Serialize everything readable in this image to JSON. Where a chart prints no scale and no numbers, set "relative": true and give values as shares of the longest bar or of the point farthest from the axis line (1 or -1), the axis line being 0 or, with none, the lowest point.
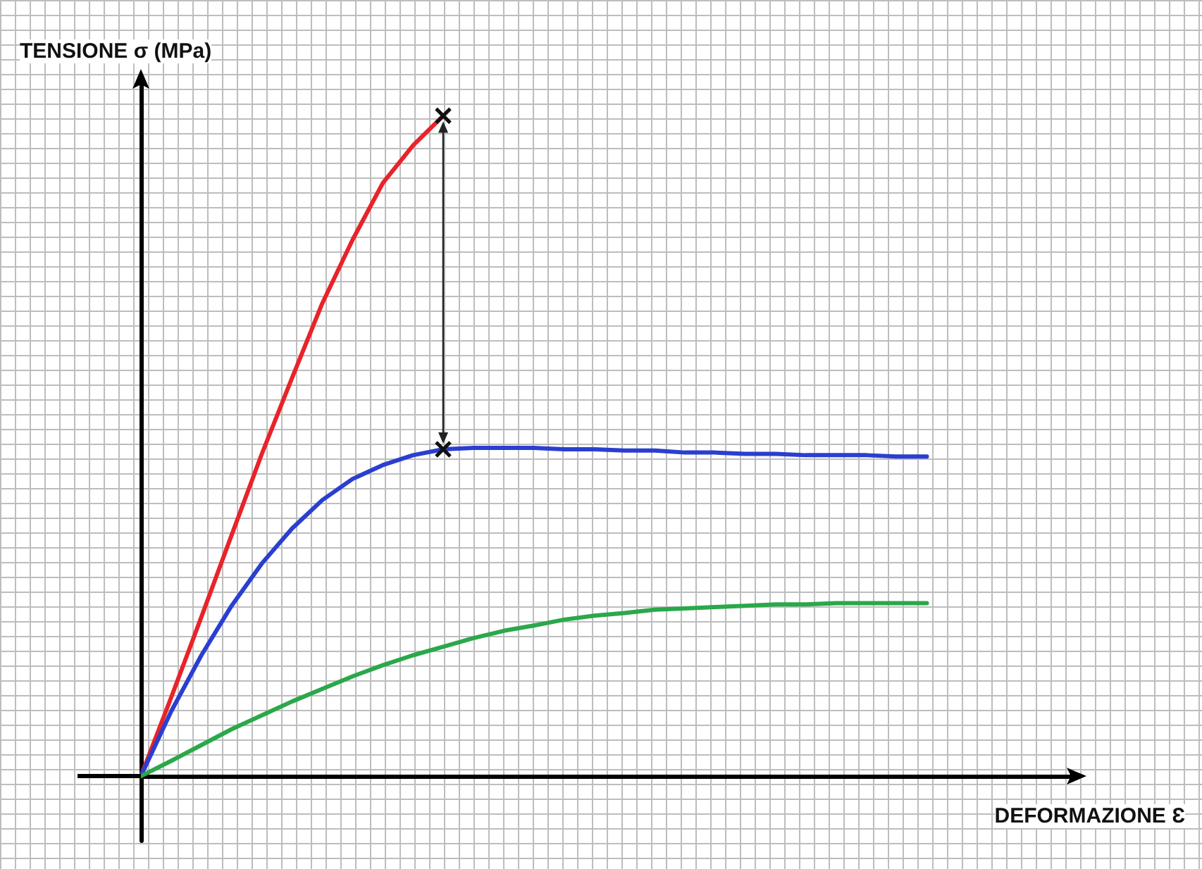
{
  "chart_data": {
    "type": "line",
    "relative": true,
    "xlabel": "DEFORMAZIONE Ɛ",
    "ylabel": "TENSIONE σ (MPa)",
    "categories": [
      null,
      null,
      null,
      null,
      null,
      null,
      null,
      null,
      null,
      null,
      null,
      null,
      null,
      null,
      null,
      null,
      null,
      null,
      null,
      null,
      null,
      null,
      null,
      null,
      null,
      null,
      null
    ],
    "series": [
      {
        "color": "#e8232a",
        "values": [
          0,
          0.119,
          0.241,
          0.365,
          0.488,
          0.603,
          0.716,
          0.812,
          0.898,
          0.955,
          1,
          null,
          null,
          null,
          null,
          null,
          null,
          null,
          null,
          null,
          null,
          null,
          null,
          null,
          null,
          null,
          null
        ]
      },
      {
        "color": "#2a3fd0",
        "values": [
          0,
          0.098,
          0.183,
          0.258,
          0.322,
          0.375,
          0.418,
          0.45,
          0.471,
          0.486,
          0.495,
          0.497,
          0.497,
          0.497,
          0.495,
          0.495,
          0.493,
          0.493,
          0.49,
          0.49,
          0.488,
          0.488,
          0.486,
          0.486,
          0.486,
          0.484,
          0.484
        ]
      },
      {
        "color": "#2aa84a",
        "values": [
          0,
          0.023,
          0.047,
          0.071,
          0.092,
          0.113,
          0.132,
          0.151,
          0.168,
          0.183,
          0.196,
          0.209,
          0.22,
          0.228,
          0.237,
          0.243,
          0.247,
          0.252,
          0.254,
          0.256,
          0.258,
          0.26,
          0.26,
          0.262,
          0.262,
          0.262,
          0.262
        ]
      }
    ]
  }
}
